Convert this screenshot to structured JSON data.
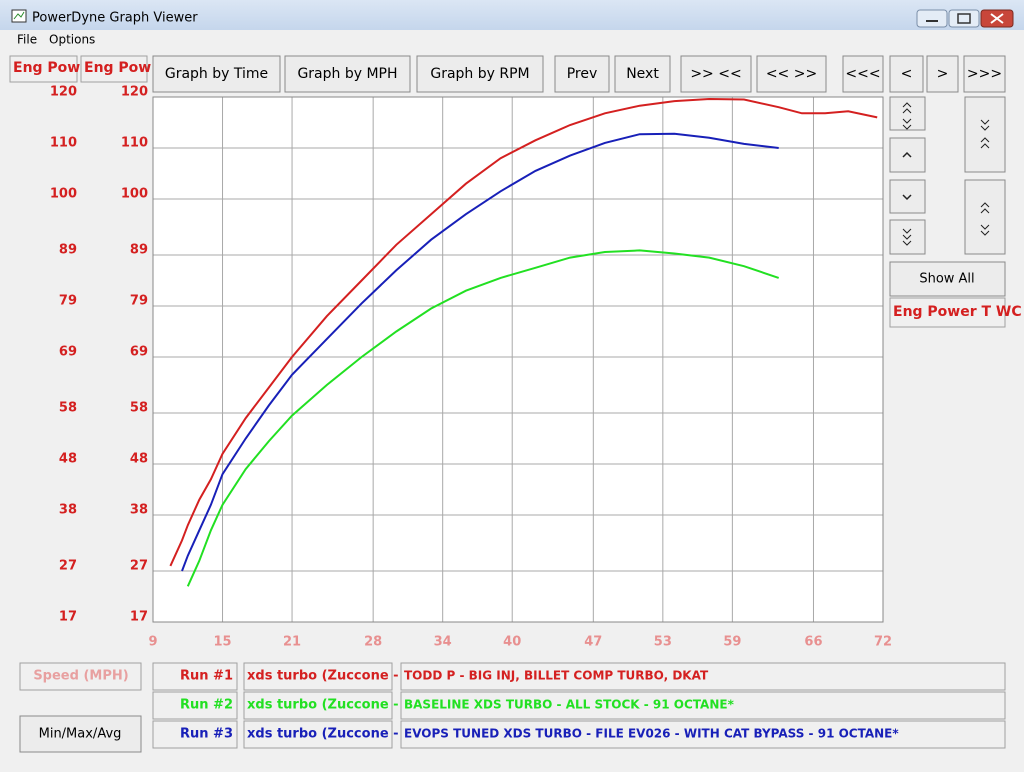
{
  "window": {
    "title": "PowerDyne Graph Viewer"
  },
  "menu": [
    "File",
    "Options"
  ],
  "toolbar": [
    "Graph by Time",
    "Graph by MPH",
    "Graph by RPM",
    "Prev",
    "Next",
    ">> <<",
    "<< >>",
    "<<<",
    "<",
    ">",
    ">>>"
  ],
  "side_panel": {
    "show_all": "Show All",
    "channel": "Eng Power T WC"
  },
  "min_max_avg": "Min/Max/Avg",
  "chart_data": {
    "type": "line",
    "xlabel": "Speed (MPH)",
    "ylabel": "Eng Pow",
    "x": [
      10.5,
      11.5,
      12,
      13,
      14,
      15,
      17,
      19,
      21,
      24,
      27,
      30,
      33,
      36,
      39,
      42,
      45,
      48,
      51,
      54,
      57,
      60,
      63,
      65,
      67,
      69,
      71.5
    ],
    "xlim": [
      9,
      72
    ],
    "xticks": [
      9,
      15,
      21,
      28,
      34,
      40,
      47,
      53,
      59,
      66,
      72
    ],
    "ylim": [
      17,
      120
    ],
    "yticks": [
      17,
      27,
      38,
      48,
      58,
      69,
      79,
      89,
      100,
      110,
      120
    ],
    "grid": true,
    "series": [
      {
        "name": "Run #1",
        "color": "#d42020",
        "vehicle": "xds turbo (Zuccone -",
        "description": "TODD P - BIG INJ, BILLET COMP TURBO, DKAT",
        "values": [
          28,
          33,
          36,
          41,
          45,
          50,
          57,
          63,
          69,
          77,
          84,
          91,
          97,
          103,
          108,
          111.5,
          114.5,
          116.8,
          118.3,
          119.2,
          119.6,
          119.5,
          118,
          116.8,
          116.8,
          117.2,
          116
        ]
      },
      {
        "name": "Run #2",
        "color": "#22e022",
        "vehicle": "xds turbo (Zuccone -",
        "description": "BASELINE XDS TURBO -  ALL STOCK - 91 OCTANE*",
        "values": [
          null,
          null,
          24,
          29,
          35,
          40,
          47,
          52.5,
          57.5,
          63.5,
          69,
          74,
          78.5,
          82,
          84.5,
          86.5,
          88.5,
          89.6,
          89.9,
          89.3,
          88.5,
          86.8,
          84.5,
          null,
          null,
          null,
          null
        ]
      },
      {
        "name": "Run #3",
        "color": "#1820b8",
        "vehicle": "xds turbo (Zuccone -",
        "description": "EVOPS TUNED XDS TURBO -  FILE EV026 - WITH CAT BYPASS - 91 OCTANE*",
        "values": [
          null,
          27,
          30,
          35,
          40,
          46,
          53,
          59.5,
          65.5,
          72.5,
          79.5,
          86,
          92,
          97,
          101.5,
          105.5,
          108.5,
          111,
          112.7,
          112.8,
          112,
          110.8,
          110,
          null,
          null,
          null,
          null
        ]
      }
    ]
  }
}
